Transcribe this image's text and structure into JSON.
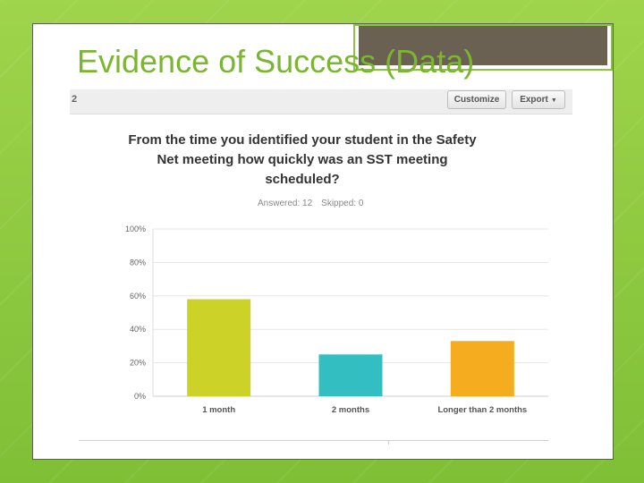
{
  "slide": {
    "title": "Evidence of Success (Data)"
  },
  "toolbar": {
    "page_number": "2",
    "customize_label": "Customize",
    "export_label": "Export",
    "export_chevron": "▼"
  },
  "question": {
    "title": "From the time you identified your student in the Safety Net meeting how quickly was an SST meeting scheduled?",
    "answered_label": "Answered: 12",
    "skipped_label": "Skipped: 0"
  },
  "colors": {
    "background": "#8cc63f",
    "title": "#7ab62f",
    "bar_1": "#cdd229",
    "bar_2": "#33bfc1",
    "bar_3": "#f5ac1f"
  },
  "chart_data": {
    "type": "bar",
    "categories": [
      "1 month",
      "2 months",
      "Longer than 2 months"
    ],
    "values": [
      58,
      25,
      33
    ],
    "value_unit": "%",
    "ylim": [
      0,
      100
    ],
    "yticks": [
      "0%",
      "20%",
      "40%",
      "60%",
      "80%",
      "100%"
    ],
    "colors": [
      "#cdd229",
      "#33bfc1",
      "#f5ac1f"
    ],
    "grid": true
  }
}
